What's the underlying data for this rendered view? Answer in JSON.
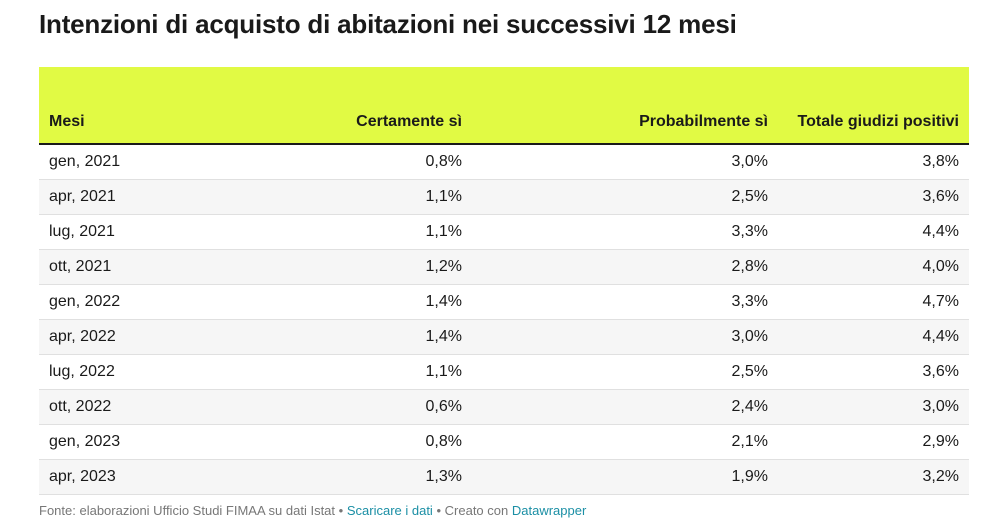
{
  "title": "Intenzioni di acquisto di abitazioni nei successivi 12 mesi",
  "colors": {
    "header_bg": "#e1fa44",
    "link": "#1b8fa5"
  },
  "chart_data": {
    "type": "table",
    "title": "Intenzioni di acquisto di abitazioni nei successivi 12 mesi",
    "columns": [
      "Mesi",
      "Certamente sì",
      "Probabilmente sì",
      "Totale giudizi positivi"
    ],
    "rows": [
      [
        "gen, 2021",
        "0,8%",
        "3,0%",
        "3,8%"
      ],
      [
        "apr, 2021",
        "1,1%",
        "2,5%",
        "3,6%"
      ],
      [
        "lug, 2021",
        "1,1%",
        "3,3%",
        "4,4%"
      ],
      [
        "ott, 2021",
        "1,2%",
        "2,8%",
        "4,0%"
      ],
      [
        "gen, 2022",
        "1,4%",
        "3,3%",
        "4,7%"
      ],
      [
        "apr, 2022",
        "1,4%",
        "3,0%",
        "4,4%"
      ],
      [
        "lug, 2022",
        "1,1%",
        "2,5%",
        "3,6%"
      ],
      [
        "ott, 2022",
        "0,6%",
        "2,4%",
        "3,0%"
      ],
      [
        "gen, 2023",
        "0,8%",
        "2,1%",
        "2,9%"
      ],
      [
        "apr, 2023",
        "1,3%",
        "1,9%",
        "3,2%"
      ]
    ]
  },
  "footer": {
    "source": "Fonte: elaborazioni Ufficio Studi FIMAA su dati Istat",
    "separator": "•",
    "download_label": "Scaricare i dati",
    "created_with": "Creato con",
    "datawrapper_label": "Datawrapper"
  }
}
